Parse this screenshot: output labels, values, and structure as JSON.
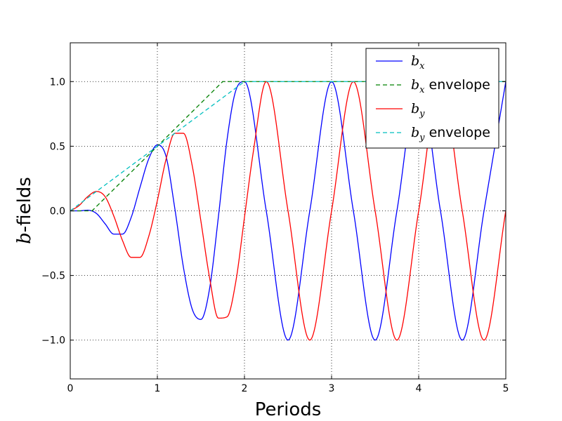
{
  "chart_data": {
    "type": "line",
    "xlabel": "Periods",
    "ylabel": {
      "var": "b",
      "rest": "-fields"
    },
    "xlim": [
      0,
      5
    ],
    "ylim": [
      -1.3,
      1.3
    ],
    "xticks": [
      0,
      1,
      2,
      3,
      4,
      5
    ],
    "xtick_labels": [
      "0",
      "1",
      "2",
      "3",
      "4",
      "5"
    ],
    "yticks": [
      -1.0,
      -0.5,
      0.0,
      0.5,
      1.0
    ],
    "ytick_labels": [
      "−1.0",
      "−0.5",
      "0.0",
      "0.5",
      "1.0"
    ],
    "grid": true,
    "legend_position": "top-right",
    "series": [
      {
        "name": "b_x",
        "legend": {
          "var": "b",
          "sub": "x",
          "suffix": ""
        },
        "color": "#0000ff",
        "style": "solid",
        "x": [
          0,
          0.1,
          0.2,
          0.3,
          0.4,
          0.5,
          0.6,
          0.7,
          0.8,
          0.9,
          1.0,
          1.1,
          1.2,
          1.3,
          1.4,
          1.5,
          1.6,
          1.7,
          1.8,
          1.9,
          2.0,
          2.25,
          2.5,
          2.75,
          3.0,
          3.25,
          3.5,
          3.75,
          4.0,
          4.25,
          4.5,
          4.75,
          5.0
        ],
        "y": [
          0,
          0,
          0.005,
          -0.02,
          -0.1,
          -0.18,
          -0.18,
          -0.05,
          0.18,
          0.4,
          0.51,
          0.42,
          0.02,
          -0.44,
          -0.76,
          -0.84,
          -0.6,
          -0.05,
          0.55,
          0.93,
          1.0,
          0,
          -1.0,
          0,
          1.0,
          0,
          -1.0,
          0,
          1.0,
          0,
          -1.0,
          0,
          1.0
        ]
      },
      {
        "name": "b_x envelope",
        "legend": {
          "var": "b",
          "sub": "x",
          "suffix": " envelope"
        },
        "color": "#008000",
        "style": "dashed",
        "x": [
          0,
          0.25,
          1.75,
          2.0,
          5.0
        ],
        "y": [
          0,
          0,
          1.0,
          1.0,
          1.0
        ]
      },
      {
        "name": "b_y",
        "legend": {
          "var": "b",
          "sub": "y",
          "suffix": ""
        },
        "color": "#ff0000",
        "style": "solid",
        "x": [
          0,
          0.1,
          0.2,
          0.3,
          0.4,
          0.5,
          0.6,
          0.7,
          0.8,
          0.9,
          1.0,
          1.1,
          1.2,
          1.3,
          1.4,
          1.5,
          1.6,
          1.7,
          1.8,
          1.9,
          2.0,
          2.1,
          2.25,
          2.5,
          2.75,
          3.0,
          3.25,
          3.5,
          3.75,
          4.0,
          4.25,
          4.5,
          4.75,
          5.0
        ],
        "y": [
          0,
          0.04,
          0.11,
          0.15,
          0.11,
          -0.04,
          -0.23,
          -0.36,
          -0.36,
          -0.2,
          0.08,
          0.4,
          0.6,
          0.6,
          0.35,
          -0.08,
          -0.52,
          -0.83,
          -0.82,
          -0.55,
          -0.05,
          0.45,
          1.0,
          0,
          -1.0,
          0,
          1.0,
          0,
          -1.0,
          0,
          1.0,
          0,
          -1.0,
          0
        ]
      },
      {
        "name": "b_y envelope",
        "legend": {
          "var": "b",
          "sub": "y",
          "suffix": " envelope"
        },
        "color": "#00bfbf",
        "style": "dashed",
        "x": [
          0,
          2.0,
          5.0
        ],
        "y": [
          0,
          1.0,
          1.0
        ]
      }
    ]
  }
}
